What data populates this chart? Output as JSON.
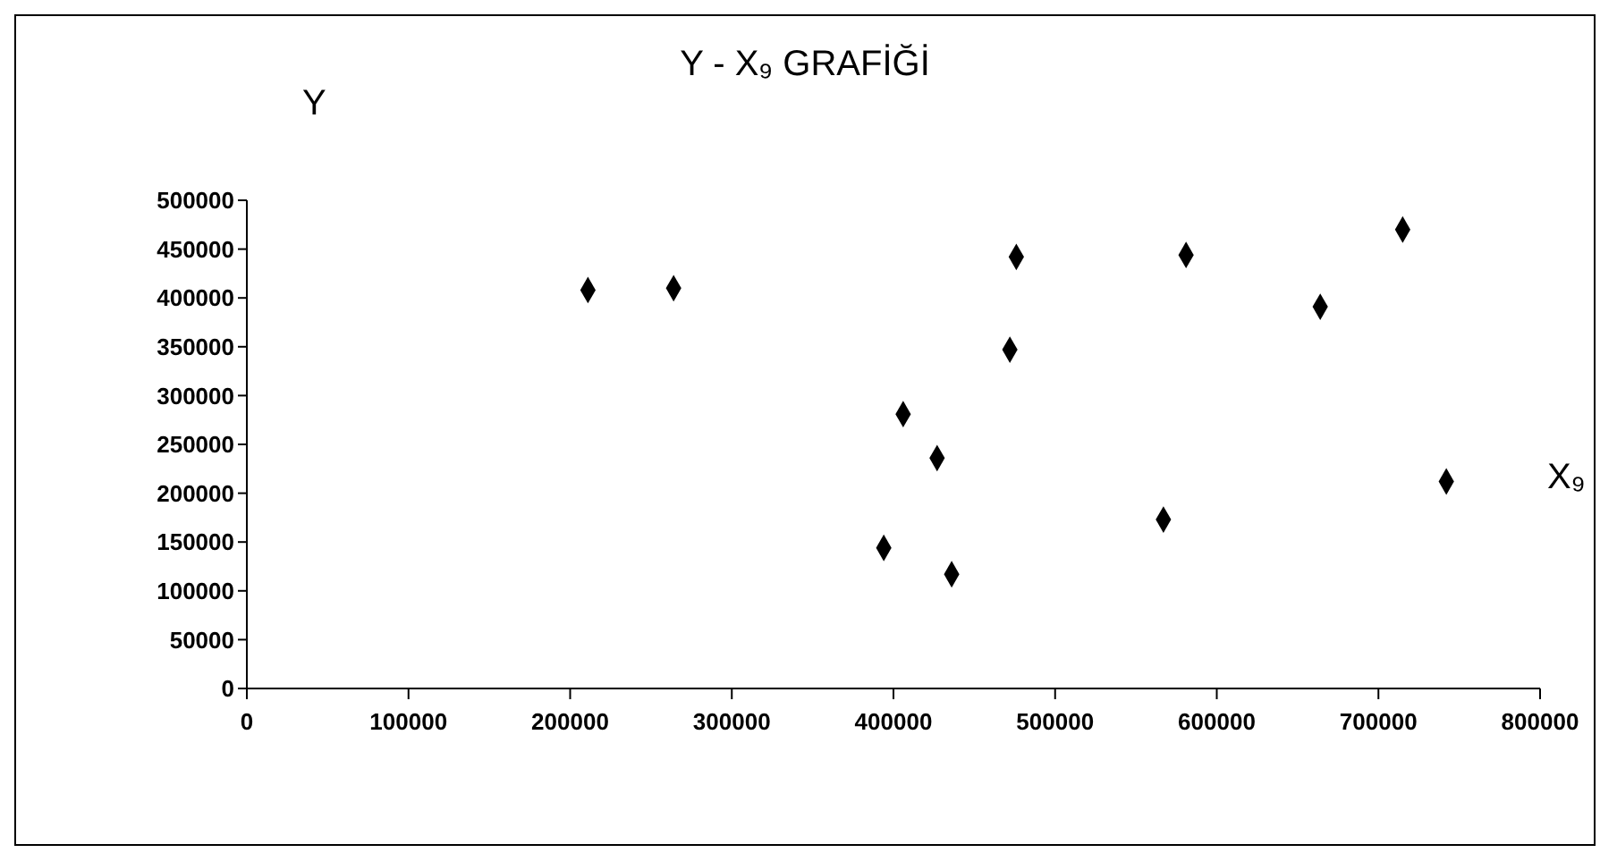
{
  "chart_data": {
    "type": "scatter",
    "title": "Y - X₉ GRAFİĞİ",
    "xlabel": "X₉",
    "ylabel": "Y",
    "x": [
      211000,
      264000,
      394000,
      406000,
      427000,
      436000,
      476000,
      472000,
      581000,
      567000,
      664000,
      715000,
      742000
    ],
    "values": [
      408000,
      410000,
      144000,
      281000,
      236000,
      117000,
      442000,
      347000,
      444000,
      173000,
      391000,
      470000,
      212000
    ],
    "color": "#000000",
    "marker": "diamond",
    "grid": false,
    "legend": false,
    "xlim": [
      0,
      800000
    ],
    "xticks": [
      0,
      100000,
      200000,
      300000,
      400000,
      500000,
      600000,
      700000,
      800000
    ],
    "ylim": [
      0,
      500000
    ],
    "yticks": [
      0,
      50000,
      100000,
      150000,
      200000,
      250000,
      300000,
      350000,
      400000,
      450000,
      500000
    ]
  }
}
